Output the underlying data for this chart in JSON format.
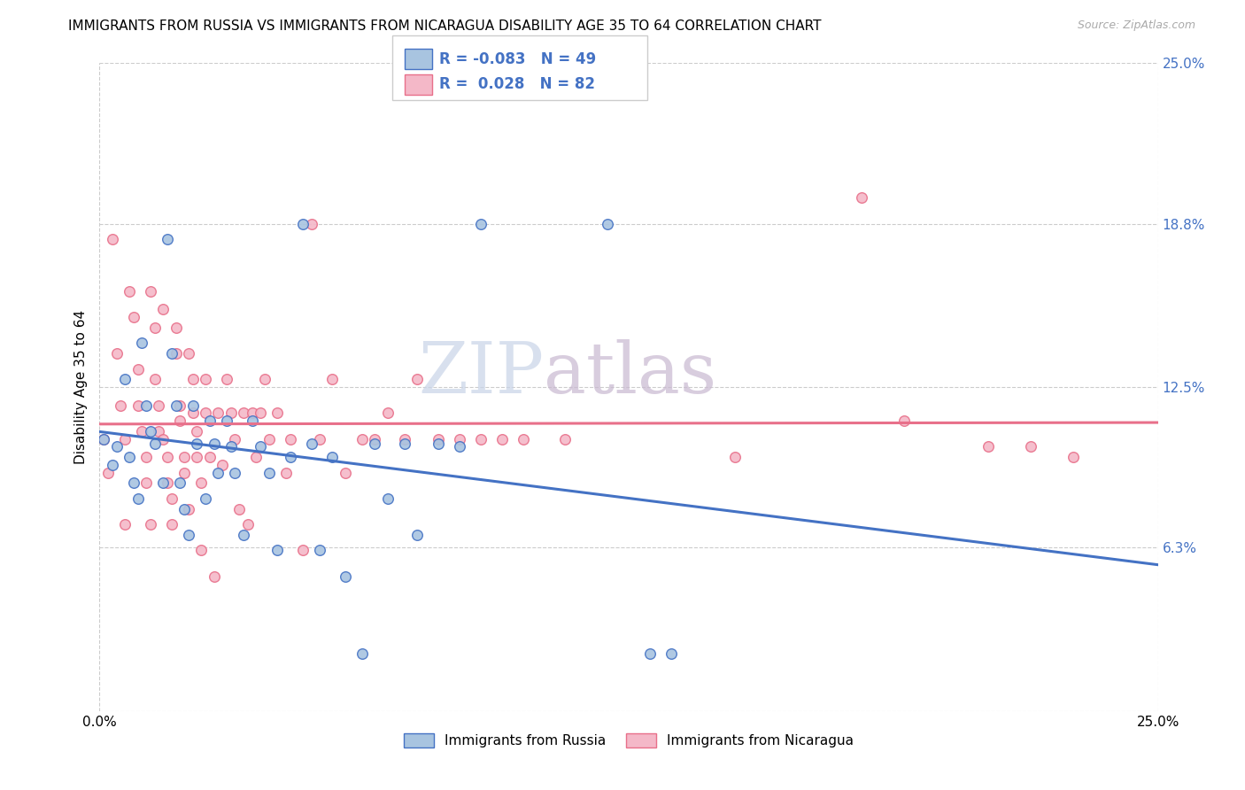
{
  "title": "IMMIGRANTS FROM RUSSIA VS IMMIGRANTS FROM NICARAGUA DISABILITY AGE 35 TO 64 CORRELATION CHART",
  "source": "Source: ZipAtlas.com",
  "ylabel": "Disability Age 35 to 64",
  "xlim": [
    0.0,
    0.25
  ],
  "ylim": [
    0.0,
    0.25
  ],
  "ytick_values": [
    0.0,
    0.063,
    0.125,
    0.188,
    0.25
  ],
  "right_ytick_labels": [
    "25.0%",
    "18.8%",
    "12.5%",
    "6.3%"
  ],
  "right_ytick_values": [
    0.25,
    0.188,
    0.125,
    0.063
  ],
  "legend_r1": "R = -0.083",
  "legend_n1": "N = 49",
  "legend_r2": "R =  0.028",
  "legend_n2": "N = 82",
  "color_russia": "#a8c4e0",
  "color_nicaragua": "#f4b8c8",
  "color_russia_line": "#4472c4",
  "color_nicaragua_line": "#e8708a",
  "color_legend_text": "#4472c4",
  "russia_x": [
    0.001,
    0.003,
    0.004,
    0.006,
    0.007,
    0.008,
    0.009,
    0.01,
    0.011,
    0.012,
    0.013,
    0.015,
    0.016,
    0.017,
    0.018,
    0.019,
    0.02,
    0.021,
    0.022,
    0.023,
    0.025,
    0.026,
    0.027,
    0.028,
    0.03,
    0.031,
    0.032,
    0.034,
    0.036,
    0.038,
    0.04,
    0.042,
    0.045,
    0.048,
    0.05,
    0.052,
    0.055,
    0.058,
    0.062,
    0.065,
    0.068,
    0.072,
    0.075,
    0.08,
    0.085,
    0.09,
    0.12,
    0.13,
    0.135
  ],
  "russia_y": [
    0.105,
    0.095,
    0.102,
    0.128,
    0.098,
    0.088,
    0.082,
    0.142,
    0.118,
    0.108,
    0.103,
    0.088,
    0.182,
    0.138,
    0.118,
    0.088,
    0.078,
    0.068,
    0.118,
    0.103,
    0.082,
    0.112,
    0.103,
    0.092,
    0.112,
    0.102,
    0.092,
    0.068,
    0.112,
    0.102,
    0.092,
    0.062,
    0.098,
    0.188,
    0.103,
    0.062,
    0.098,
    0.052,
    0.022,
    0.103,
    0.082,
    0.103,
    0.068,
    0.103,
    0.102,
    0.188,
    0.188,
    0.022,
    0.022
  ],
  "nicaragua_x": [
    0.001,
    0.002,
    0.003,
    0.004,
    0.005,
    0.006,
    0.006,
    0.007,
    0.008,
    0.009,
    0.009,
    0.01,
    0.011,
    0.011,
    0.012,
    0.012,
    0.013,
    0.013,
    0.014,
    0.014,
    0.015,
    0.015,
    0.016,
    0.016,
    0.017,
    0.017,
    0.018,
    0.018,
    0.019,
    0.019,
    0.02,
    0.02,
    0.021,
    0.021,
    0.022,
    0.022,
    0.023,
    0.023,
    0.024,
    0.024,
    0.025,
    0.025,
    0.026,
    0.027,
    0.028,
    0.029,
    0.03,
    0.031,
    0.032,
    0.033,
    0.034,
    0.035,
    0.036,
    0.037,
    0.038,
    0.039,
    0.04,
    0.042,
    0.044,
    0.045,
    0.048,
    0.05,
    0.052,
    0.055,
    0.058,
    0.062,
    0.065,
    0.068,
    0.072,
    0.075,
    0.08,
    0.085,
    0.09,
    0.095,
    0.1,
    0.11,
    0.15,
    0.18,
    0.19,
    0.21,
    0.22,
    0.23
  ],
  "nicaragua_y": [
    0.105,
    0.092,
    0.182,
    0.138,
    0.118,
    0.105,
    0.072,
    0.162,
    0.152,
    0.132,
    0.118,
    0.108,
    0.098,
    0.088,
    0.072,
    0.162,
    0.148,
    0.128,
    0.118,
    0.108,
    0.155,
    0.105,
    0.098,
    0.088,
    0.082,
    0.072,
    0.148,
    0.138,
    0.118,
    0.112,
    0.098,
    0.092,
    0.078,
    0.138,
    0.128,
    0.115,
    0.108,
    0.098,
    0.088,
    0.062,
    0.128,
    0.115,
    0.098,
    0.052,
    0.115,
    0.095,
    0.128,
    0.115,
    0.105,
    0.078,
    0.115,
    0.072,
    0.115,
    0.098,
    0.115,
    0.128,
    0.105,
    0.115,
    0.092,
    0.105,
    0.062,
    0.188,
    0.105,
    0.128,
    0.092,
    0.105,
    0.105,
    0.115,
    0.105,
    0.128,
    0.105,
    0.105,
    0.105,
    0.105,
    0.105,
    0.105,
    0.098,
    0.198,
    0.112,
    0.102,
    0.102,
    0.098
  ],
  "grid_color": "#cccccc",
  "background_color": "#ffffff",
  "watermark_zip": "ZIP",
  "watermark_atlas": "atlas",
  "watermark_color_zip": "#c8d4e8",
  "watermark_color_atlas": "#c8b8d0",
  "scatter_size": 70,
  "legend_fontsize": 12,
  "title_fontsize": 11,
  "axis_label_fontsize": 11,
  "bottom_legend_label1": "Immigrants from Russia",
  "bottom_legend_label2": "Immigrants from Nicaragua"
}
